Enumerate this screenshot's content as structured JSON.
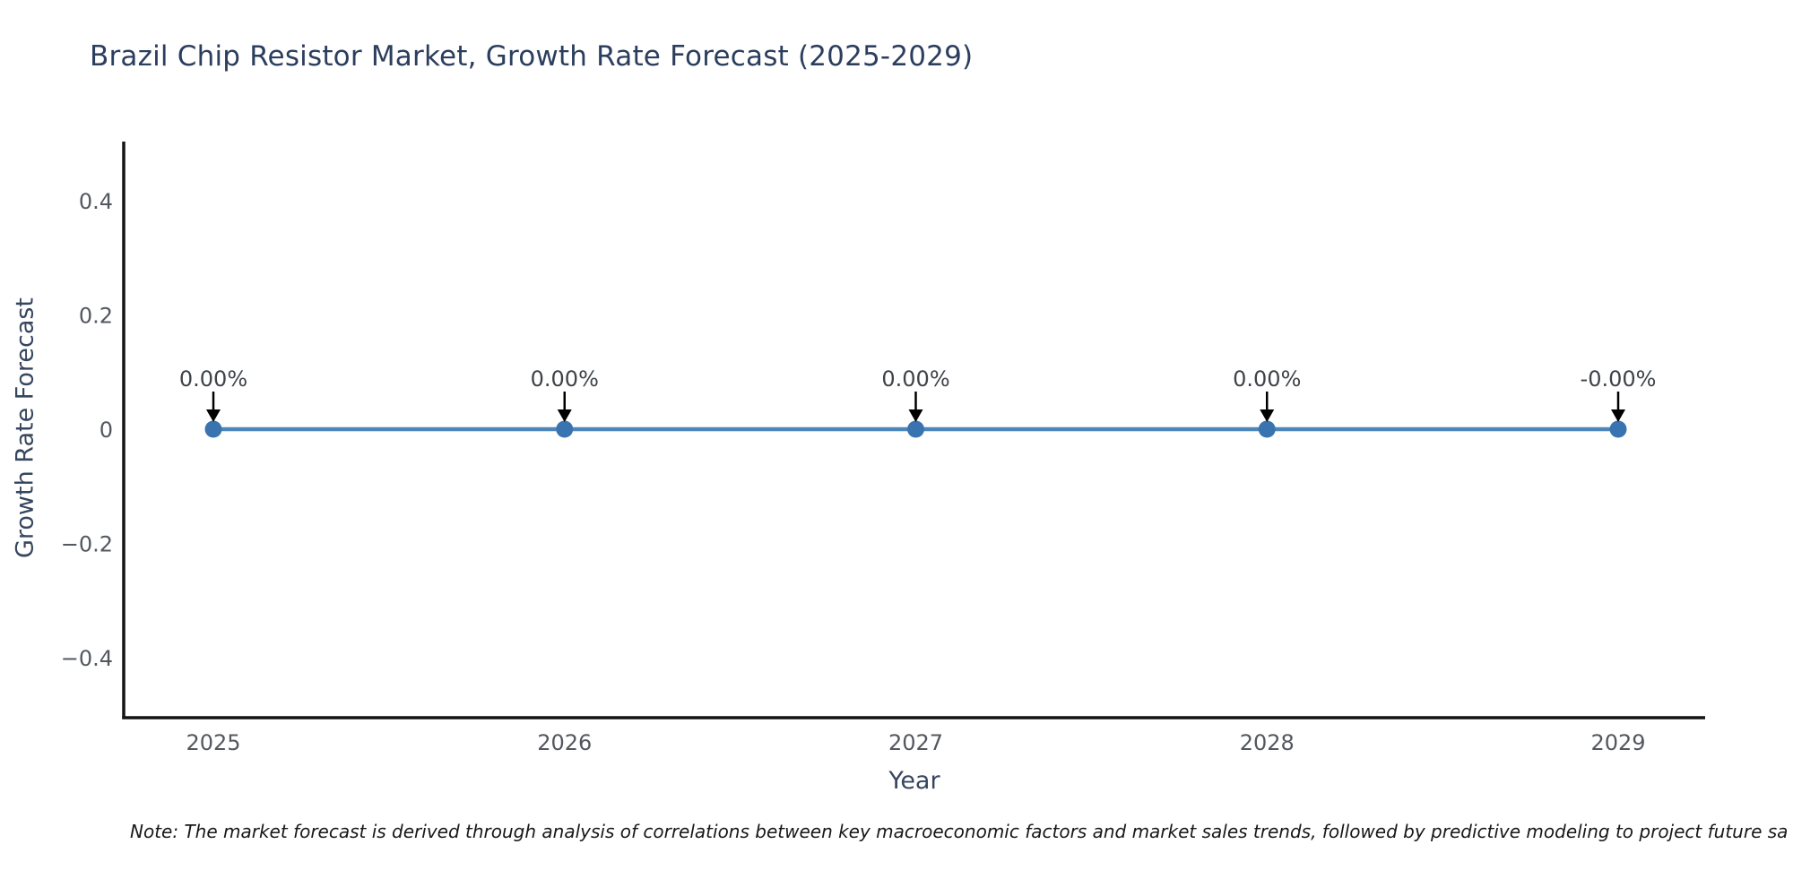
{
  "title": "Brazil Chip Resistor Market, Growth Rate Forecast (2025-2029)",
  "footnote": "Note: The market forecast is derived through analysis of correlations between key macroeconomic factors and market sales trends, followed by predictive modeling to project future sa",
  "chart_data": {
    "type": "line",
    "title": "Brazil Chip Resistor Market, Growth Rate Forecast (2025-2029)",
    "xlabel": "Year",
    "ylabel": "Growth Rate Forecast",
    "x": [
      2025,
      2026,
      2027,
      2028,
      2029
    ],
    "series": [
      {
        "name": "Growth Rate Forecast",
        "values": [
          0,
          0,
          0,
          0,
          0
        ]
      }
    ],
    "point_labels": [
      "0.00%",
      "0.00%",
      "0.00%",
      "0.00%",
      "-0.00%"
    ],
    "xticks": [
      "2025",
      "2026",
      "2027",
      "2028",
      "2029"
    ],
    "yticks": [
      {
        "label": "0.4",
        "value": 0.4
      },
      {
        "label": "0.2",
        "value": 0.2
      },
      {
        "label": "0",
        "value": 0.0
      },
      {
        "label": "−0.2",
        "value": -0.2
      },
      {
        "label": "−0.4",
        "value": -0.4
      }
    ],
    "ylim": [
      -0.5,
      0.5
    ],
    "grid": false,
    "legend": "none",
    "colors": {
      "line": "#4e86b8",
      "marker": "#3a74b0",
      "axis_spine": "#141414",
      "arrow": "#000000",
      "annotation_text": "#3e434a",
      "tick_text": "#53585f",
      "axis_title_text": "#36465e",
      "title_text": "#2b3e5d",
      "note_text": "#16181a",
      "background": "#ffffff"
    }
  }
}
